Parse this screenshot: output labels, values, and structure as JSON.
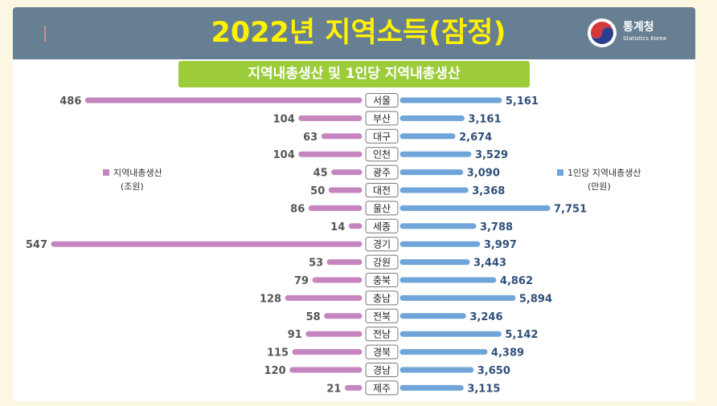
{
  "header": {
    "title": "2022년 지역소득(잠정)",
    "subtitle": "지역내총생산 및 1인당 지역내총생산",
    "logo_name": "통계청",
    "logo_sub": "Statistics Korea"
  },
  "legend": {
    "left_label": "지역내총생산",
    "left_unit": "(조원)",
    "right_label": "1인당 지역내총생산",
    "right_unit": "(만원)"
  },
  "colors": {
    "left_bar": "#c586c0",
    "right_bar": "#6fa5d9",
    "header_bg": "#677f92",
    "title": "#fff200",
    "subtitle_bg": "#9ccc3a"
  },
  "chart_data": {
    "type": "bar",
    "categories": [
      "서울",
      "부산",
      "대구",
      "인천",
      "광주",
      "대전",
      "울산",
      "세종",
      "경기",
      "강원",
      "충북",
      "충남",
      "전북",
      "전남",
      "경북",
      "경남",
      "제주"
    ],
    "series": [
      {
        "name": "지역내총생산",
        "values": [
          486,
          104,
          63,
          104,
          45,
          50,
          86,
          14,
          547,
          53,
          79,
          128,
          58,
          91,
          115,
          120,
          21
        ]
      },
      {
        "name": "1인당 지역내총생산",
        "values": [
          5161,
          3161,
          2674,
          3529,
          3090,
          3368,
          7751,
          3788,
          3997,
          3443,
          4862,
          5894,
          3246,
          5142,
          4389,
          3650,
          3115
        ]
      }
    ],
    "labels_left": [
      "486",
      "104",
      "63",
      "104",
      "45",
      "50",
      "86",
      "14",
      "547",
      "53",
      "79",
      "128",
      "58",
      "91",
      "115",
      "120",
      "21"
    ],
    "labels_right": [
      "5,161",
      "3,161",
      "2,674",
      "3,529",
      "3,090",
      "3,368",
      "7,751",
      "3,788",
      "3,997",
      "3,443",
      "4,862",
      "5,894",
      "3,246",
      "5,142",
      "4,389",
      "3,650",
      "3,115"
    ]
  }
}
